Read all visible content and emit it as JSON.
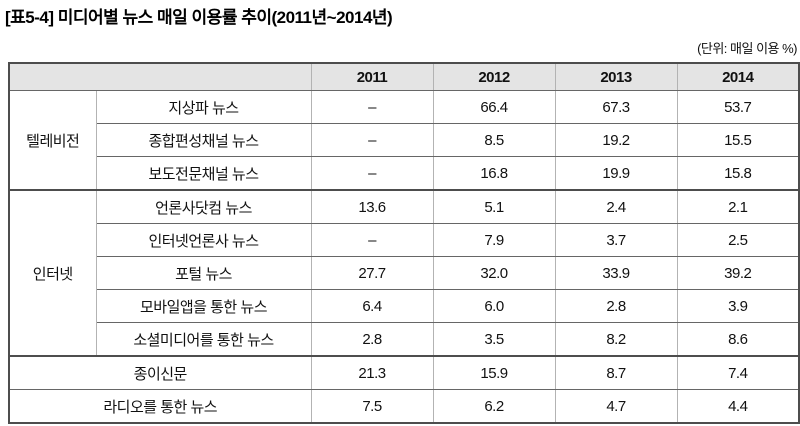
{
  "title": "[표5-4] 미디어별 뉴스 매일 이용률 추이(2011년~2014년)",
  "unit_note": "(단위: 매일 이용 %)",
  "table": {
    "corner": "",
    "years": [
      "2011",
      "2012",
      "2013",
      "2014"
    ],
    "group_tv": "텔레비전",
    "group_internet": "인터넷",
    "rows": [
      {
        "label": "지상파 뉴스",
        "v": [
          "–",
          "66.4",
          "67.3",
          "53.7"
        ]
      },
      {
        "label": "종합편성채널 뉴스",
        "v": [
          "–",
          "8.5",
          "19.2",
          "15.5"
        ]
      },
      {
        "label": "보도전문채널 뉴스",
        "v": [
          "–",
          "16.8",
          "19.9",
          "15.8"
        ]
      },
      {
        "label": "언론사닷컴 뉴스",
        "v": [
          "13.6",
          "5.1",
          "2.4",
          "2.1"
        ]
      },
      {
        "label": "인터넷언론사 뉴스",
        "v": [
          "–",
          "7.9",
          "3.7",
          "2.5"
        ]
      },
      {
        "label": "포털 뉴스",
        "v": [
          "27.7",
          "32.0",
          "33.9",
          "39.2"
        ]
      },
      {
        "label": "모바일앱을 통한 뉴스",
        "v": [
          "6.4",
          "6.0",
          "2.8",
          "3.9"
        ]
      },
      {
        "label": "소셜미디어를 통한 뉴스",
        "v": [
          "2.8",
          "3.5",
          "8.2",
          "8.6"
        ]
      },
      {
        "label": "종이신문",
        "v": [
          "21.3",
          "15.9",
          "8.7",
          "7.4"
        ]
      },
      {
        "label": "라디오를 통한 뉴스",
        "v": [
          "7.5",
          "6.2",
          "4.7",
          "4.4"
        ]
      }
    ]
  },
  "colors": {
    "header_bg": "#e4e4e4",
    "frame_border": "#4d4d4d",
    "row_border": "#666666",
    "column_border": "#b3b3b3",
    "text": "#111111"
  },
  "chart_data": {
    "type": "table",
    "title": "[표5-4] 미디어별 뉴스 매일 이용률 추이(2011년~2014년)",
    "unit": "매일 이용 %",
    "columns": [
      "2011",
      "2012",
      "2013",
      "2014"
    ],
    "rows": [
      {
        "group": "텔레비전",
        "label": "지상파 뉴스",
        "values": [
          null,
          66.4,
          67.3,
          53.7
        ]
      },
      {
        "group": "텔레비전",
        "label": "종합편성채널 뉴스",
        "values": [
          null,
          8.5,
          19.2,
          15.5
        ]
      },
      {
        "group": "텔레비전",
        "label": "보도전문채널 뉴스",
        "values": [
          null,
          16.8,
          19.9,
          15.8
        ]
      },
      {
        "group": "인터넷",
        "label": "언론사닷컴 뉴스",
        "values": [
          13.6,
          5.1,
          2.4,
          2.1
        ]
      },
      {
        "group": "인터넷",
        "label": "인터넷언론사 뉴스",
        "values": [
          null,
          7.9,
          3.7,
          2.5
        ]
      },
      {
        "group": "인터넷",
        "label": "포털 뉴스",
        "values": [
          27.7,
          32.0,
          33.9,
          39.2
        ]
      },
      {
        "group": "인터넷",
        "label": "모바일앱을 통한 뉴스",
        "values": [
          6.4,
          6.0,
          2.8,
          3.9
        ]
      },
      {
        "group": "인터넷",
        "label": "소셜미디어를 통한 뉴스",
        "values": [
          2.8,
          3.5,
          8.2,
          8.6
        ]
      },
      {
        "group": null,
        "label": "종이신문",
        "values": [
          21.3,
          15.9,
          8.7,
          7.4
        ]
      },
      {
        "group": null,
        "label": "라디오를 통한 뉴스",
        "values": [
          7.5,
          6.2,
          4.7,
          4.4
        ]
      }
    ]
  }
}
